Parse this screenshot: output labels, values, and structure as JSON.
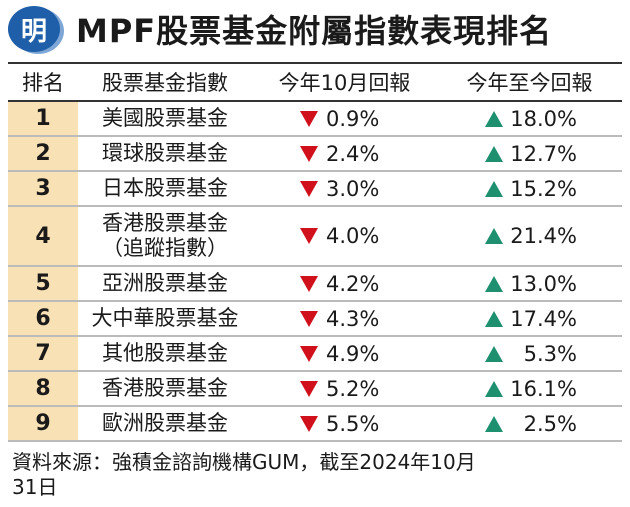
{
  "header": {
    "logo_text": "明",
    "title": "MPF股票基金附屬指數表現排名"
  },
  "table": {
    "headers": {
      "rank": "排名",
      "fund": "股票基金指數",
      "oct": "今年10月回報",
      "ytd": "今年至今回報"
    },
    "rows": [
      {
        "rank": "1",
        "fund": "美國股票基金",
        "oct": "0.9%",
        "ytd": "18.0%"
      },
      {
        "rank": "2",
        "fund": "環球股票基金",
        "oct": "2.4%",
        "ytd": "12.7%"
      },
      {
        "rank": "3",
        "fund": "日本股票基金",
        "oct": "3.0%",
        "ytd": "15.2%"
      },
      {
        "rank": "4",
        "fund": "香港股票基金",
        "fund_line2": "（追蹤指數）",
        "oct": "4.0%",
        "ytd": "21.4%"
      },
      {
        "rank": "5",
        "fund": "亞洲股票基金",
        "oct": "4.2%",
        "ytd": "13.0%"
      },
      {
        "rank": "6",
        "fund": "大中華股票基金",
        "oct": "4.3%",
        "ytd": "17.4%"
      },
      {
        "rank": "7",
        "fund": "其他股票基金",
        "oct": "4.9%",
        "ytd": "5.3%"
      },
      {
        "rank": "8",
        "fund": "香港股票基金",
        "oct": "5.2%",
        "ytd": "16.1%"
      },
      {
        "rank": "9",
        "fund": "歐洲股票基金",
        "oct": "5.5%",
        "ytd": "2.5%"
      }
    ]
  },
  "footnote": "資料來源：強積金諮詢機構GUM，截至2024年10月\n31日",
  "colors": {
    "down": "#d0111b",
    "up": "#1e9070",
    "rank_bg": "#f8e1b4",
    "logo_bg": "#1f5ea8"
  },
  "icons": {
    "oct_direction": "red-down-triangle-icon",
    "ytd_direction": "green-up-triangle-icon"
  }
}
